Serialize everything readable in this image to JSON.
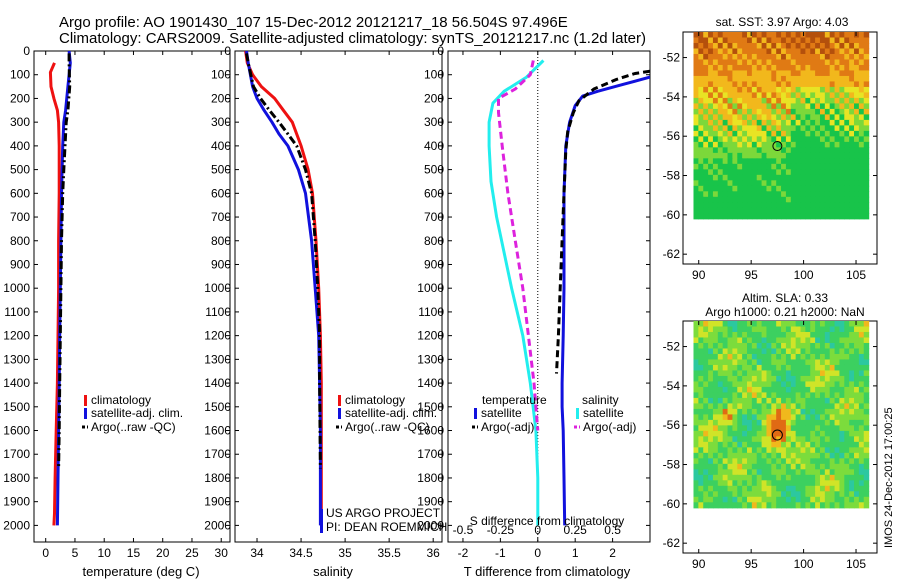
{
  "header": {
    "line1": "Argo profile: AO 1901430_107 15-Dec-2012 20121217_18 56.504S 97.496E",
    "line2": "Climatology: CARS2009. Satellite-adjusted climatology: synTS_20121217.nc (1.2d later)"
  },
  "colors": {
    "climatology": "#ee1111",
    "satellite": "#1111dd",
    "argo": "#000000",
    "salinity_satellite": "#22eeee",
    "salinity_argo": "#dd22dd"
  },
  "depth_axis": {
    "range": [
      2070,
      0
    ],
    "ticks": [
      0,
      100,
      200,
      300,
      400,
      500,
      600,
      700,
      800,
      900,
      1000,
      1100,
      1200,
      1300,
      1400,
      1500,
      1600,
      1700,
      1800,
      1900,
      2000
    ]
  },
  "chart_data": [
    {
      "type": "line",
      "name": "temperature",
      "xlabel": "temperature (deg C)",
      "ylabel": "",
      "xlim": [
        -2,
        31.5
      ],
      "ylim": [
        2070,
        0
      ],
      "xticks": [
        0,
        5,
        10,
        15,
        20,
        25,
        30
      ],
      "legend_placement": "bottom-center",
      "legend": [
        "climatology",
        "satellite-adj. clim.",
        "Argo(..raw -QC)"
      ],
      "series": [
        {
          "name": "climatology",
          "style": "solid",
          "color": "#ee1111",
          "x": [
            1.5,
            0.8,
            0.9,
            1.4,
            2.0,
            2.2,
            2.3,
            2.3,
            2.2,
            2.2,
            2.1,
            2.0,
            1.9,
            1.8,
            1.6,
            1.5,
            1.4
          ],
          "y": [
            50,
            90,
            150,
            200,
            250,
            300,
            400,
            600,
            800,
            1000,
            1200,
            1400,
            1500,
            1600,
            1800,
            1950,
            2000
          ]
        },
        {
          "name": "satellite-adj. clim.",
          "style": "solid",
          "color": "#1111dd",
          "x": [
            4.0,
            4.2,
            3.8,
            3.4,
            3.1,
            2.9,
            2.7,
            2.6,
            2.5,
            2.4,
            2.3,
            2.2,
            2.1,
            2.0
          ],
          "y": [
            0,
            50,
            150,
            250,
            300,
            400,
            600,
            800,
            1000,
            1200,
            1400,
            1600,
            1800,
            2000
          ]
        },
        {
          "name": "Argo(..raw -QC)",
          "style": "dashdot",
          "color": "#000000",
          "x": [
            4.0,
            4.0,
            4.1,
            3.8,
            3.5,
            3.3,
            3.1,
            2.9,
            2.7,
            2.6,
            2.5,
            2.4,
            2.3,
            2.2
          ],
          "y": [
            10,
            50,
            150,
            250,
            300,
            400,
            500,
            600,
            800,
            1000,
            1200,
            1400,
            1600,
            1760
          ]
        }
      ]
    },
    {
      "type": "line",
      "name": "salinity",
      "xlabel": "salinity",
      "ylabel": "",
      "xlim": [
        33.75,
        36.1
      ],
      "ylim": [
        2070,
        0
      ],
      "xticks": [
        34,
        34.5,
        35,
        35.5,
        36
      ],
      "legend_placement": "bottom-center",
      "legend": [
        "climatology",
        "satellite-adj. clim.",
        "Argo(..raw -QC)"
      ],
      "annotations": [
        "US ARGO PROJECT",
        "PI: DEAN ROEMMICH"
      ],
      "series": [
        {
          "name": "climatology",
          "style": "solid",
          "color": "#ee1111",
          "x": [
            33.87,
            33.89,
            33.95,
            34.05,
            34.2,
            34.3,
            34.4,
            34.5,
            34.58,
            34.63,
            34.67,
            34.7,
            34.72,
            34.73,
            34.73,
            34.73
          ],
          "y": [
            0,
            50,
            100,
            150,
            200,
            250,
            300,
            400,
            500,
            600,
            800,
            1000,
            1200,
            1400,
            1600,
            2000
          ]
        },
        {
          "name": "satellite-adj. clim.",
          "style": "solid",
          "color": "#1111dd",
          "x": [
            33.88,
            33.9,
            33.95,
            34.0,
            34.08,
            34.17,
            34.25,
            34.35,
            34.47,
            34.55,
            34.62,
            34.66,
            34.7,
            34.71,
            34.72,
            34.72,
            34.72
          ],
          "y": [
            0,
            50,
            150,
            200,
            250,
            300,
            350,
            400,
            500,
            600,
            800,
            1000,
            1200,
            1400,
            1600,
            1800,
            2000
          ]
        },
        {
          "name": "Argo(..raw -QC)",
          "style": "dashdot",
          "color": "#000000",
          "x": [
            33.88,
            33.9,
            33.96,
            34.04,
            34.14,
            34.25,
            34.35,
            34.45,
            34.55,
            34.62,
            34.66,
            34.69,
            34.71,
            34.71,
            34.72
          ],
          "y": [
            10,
            50,
            150,
            200,
            250,
            300,
            350,
            400,
            500,
            600,
            800,
            1000,
            1200,
            1400,
            1760
          ]
        }
      ]
    },
    {
      "type": "line",
      "name": "differences",
      "xlabel": "T difference from climatology",
      "top_xlabel": "S difference from climatology",
      "ylabel": "",
      "xlim": [
        -2.4,
        3.0
      ],
      "ylim": [
        2070,
        0
      ],
      "xticks_bottom": [
        -2,
        -1,
        0,
        1,
        2
      ],
      "xticks_top": [
        "-0.5",
        "-0.25",
        "0",
        "0.25",
        "0.5"
      ],
      "zero_line": true,
      "legend_placement": "bottom-center",
      "legend_groups": [
        {
          "title": "temperature",
          "entries": [
            "satellite",
            "Argo(-adj)"
          ]
        },
        {
          "title": "salinity",
          "entries": [
            "satellite",
            "Argo(-adj)"
          ]
        }
      ],
      "series": [
        {
          "name": "satellite",
          "group": "temperature",
          "style": "solid",
          "color": "#1111dd",
          "x": [
            3.0,
            2.3,
            1.6,
            1.2,
            1.0,
            0.85,
            0.75,
            0.7,
            0.7,
            0.7,
            0.68,
            0.65,
            0.65,
            0.68,
            0.7,
            0.72
          ],
          "y": [
            110,
            140,
            170,
            190,
            230,
            300,
            400,
            600,
            800,
            1000,
            1200,
            1400,
            1500,
            1600,
            1800,
            2000
          ]
        },
        {
          "name": "Argo(-adj)",
          "group": "temperature",
          "style": "dashed",
          "color": "#000000",
          "x": [
            3.0,
            2.6,
            2.1,
            1.5,
            1.1,
            0.95,
            0.8,
            0.75,
            0.7,
            0.65,
            0.6,
            0.55,
            0.5
          ],
          "y": [
            85,
            95,
            120,
            160,
            210,
            260,
            340,
            420,
            600,
            800,
            1000,
            1200,
            1360
          ]
        },
        {
          "name": "satellite",
          "group": "salinity",
          "style": "solid",
          "color": "#22eeee",
          "x": [
            0.15,
            -0.3,
            -0.9,
            -1.2,
            -1.3,
            -1.3,
            -1.25,
            -1.1,
            -0.9,
            -0.7,
            -0.4,
            -0.2,
            -0.05,
            0.0,
            0.0
          ],
          "y": [
            40,
            110,
            170,
            220,
            300,
            400,
            550,
            700,
            850,
            1000,
            1200,
            1400,
            1600,
            1800,
            2000
          ]
        },
        {
          "name": "Argo(-adj)",
          "group": "salinity",
          "style": "dashed",
          "color": "#dd22dd",
          "x": [
            -0.12,
            -0.2,
            -0.6,
            -1.05,
            -1.05,
            -0.95,
            -0.8,
            -0.6,
            -0.4,
            -0.25,
            -0.1,
            0.0
          ],
          "y": [
            40,
            100,
            160,
            200,
            260,
            400,
            600,
            800,
            1000,
            1200,
            1400,
            1600
          ]
        }
      ]
    },
    {
      "type": "heatmap",
      "name": "sst-map",
      "title": "sat. SST: 3.97 Argo: 4.03",
      "xlim": [
        88.5,
        107
      ],
      "ylim": [
        -62.5,
        -50.7
      ],
      "xticks": [
        90,
        95,
        100,
        105
      ],
      "yticks": [
        -52,
        -54,
        -56,
        -58,
        -60,
        -62
      ],
      "field_extent": {
        "x": [
          89.5,
          106.2
        ],
        "y": [
          -60.2,
          -50.7
        ]
      },
      "marker": {
        "lon": 97.5,
        "lat": -56.5
      }
    },
    {
      "type": "heatmap",
      "name": "sla-map",
      "title": "Altim. SLA: 0.33",
      "subtitle": "Argo h1000: 0.21 h2000: NaN",
      "xlim": [
        88.5,
        107
      ],
      "ylim": [
        -62.5,
        -50.7
      ],
      "xticks": [
        90,
        95,
        100,
        105
      ],
      "yticks": [
        -52,
        -54,
        -56,
        -58,
        -60,
        -62
      ],
      "field_extent": {
        "x": [
          89.5,
          106.2
        ],
        "y": [
          -60.2,
          -50.7
        ]
      },
      "marker": {
        "lon": 97.5,
        "lat": -56.5
      }
    }
  ],
  "footer": {
    "timestamp": "IMOS 24-Dec-2012 17:00:25"
  }
}
